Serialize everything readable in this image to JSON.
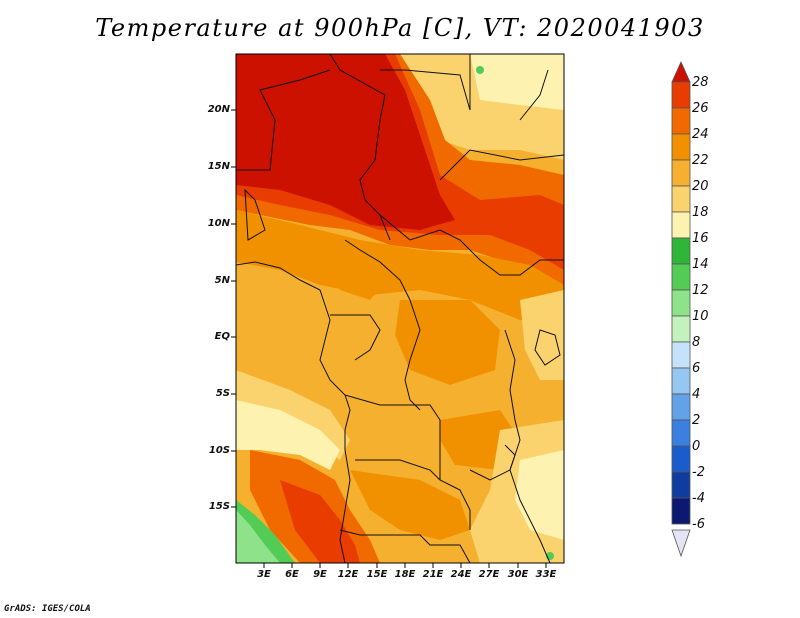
{
  "title": "Temperature at 900hPa [C], VT: 2020041903",
  "lat_labels": [
    "20N",
    "15N",
    "10N",
    "5N",
    "EQ",
    "5S",
    "10S",
    "15S"
  ],
  "lon_labels": [
    "3E",
    "6E",
    "9E",
    "12E",
    "15E",
    "18E",
    "21E",
    "24E",
    "27E",
    "30E",
    "33E"
  ],
  "colorbar": {
    "labels": [
      "28",
      "26",
      "24",
      "22",
      "20",
      "18",
      "16",
      "14",
      "12",
      "10",
      "8",
      "6",
      "4",
      "2",
      "0",
      "-2",
      "-4",
      "-6"
    ],
    "colors": [
      "#cc1100",
      "#e83c00",
      "#f06a00",
      "#f29100",
      "#f5b030",
      "#fbd36e",
      "#fdf2b0",
      "#2fb63a",
      "#52cc55",
      "#8ee28a",
      "#c4f2be",
      "#c6e2fa",
      "#96c6f2",
      "#64a2e8",
      "#3b80de",
      "#1b5ccc",
      "#0f3c9e",
      "#0b1a70",
      "#e4e4f4"
    ]
  },
  "credit": "GrADS: IGES/COLA"
}
